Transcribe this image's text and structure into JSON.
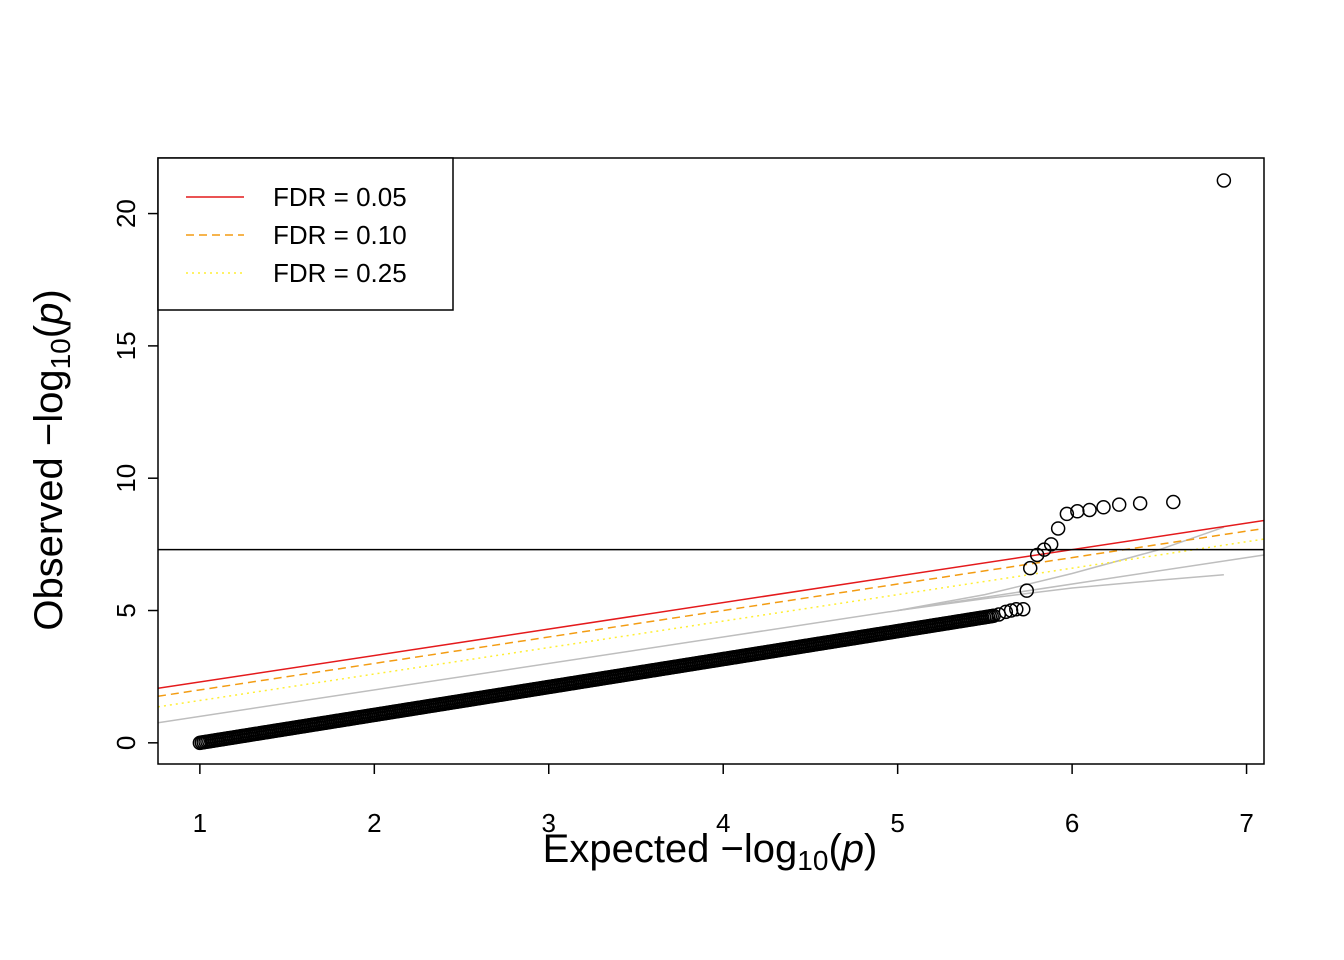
{
  "chart_data": {
    "type": "scatter",
    "title": "",
    "xlabel": {
      "prefix": "Expected ",
      "minus": "−",
      "log": "log",
      "sub": "10",
      "open": "(",
      "var": "p",
      "close": ")"
    },
    "ylabel": {
      "prefix": "Observed ",
      "minus": "−",
      "log": "log",
      "sub": "10",
      "open": "(",
      "var": "p",
      "close": ")"
    },
    "xlim": [
      0.76,
      7.1
    ],
    "ylim": [
      -0.8,
      22.1
    ],
    "x_ticks": [
      1,
      2,
      3,
      4,
      5,
      6,
      7
    ],
    "y_ticks": [
      0,
      5,
      10,
      15,
      20
    ],
    "grid": false,
    "legend": {
      "position": "top-left",
      "entries": [
        {
          "label": "FDR = 0.05",
          "color": "#e41a1c",
          "dash": "solid"
        },
        {
          "label": "FDR = 0.10",
          "color": "#f39c12",
          "dash": "dashed"
        },
        {
          "label": "FDR = 0.25",
          "color": "#ffee33",
          "dash": "dotted"
        }
      ]
    },
    "reference_lines": {
      "significance_threshold_y": 7.3,
      "fdr_lines": [
        {
          "name": "FDR = 0.05",
          "color": "#e41a1c",
          "dash": "solid",
          "intercept": 1.3,
          "slope": 1.0
        },
        {
          "name": "FDR = 0.10",
          "color": "#f39c12",
          "dash": "dashed",
          "intercept": 1.0,
          "slope": 1.0
        },
        {
          "name": "FDR = 0.25",
          "color": "#ffee33",
          "dash": "dotted",
          "intercept": 0.6,
          "slope": 1.0
        }
      ],
      "identity_line": {
        "color": "#bebebe",
        "intercept": 0,
        "slope": 1.0
      },
      "confidence_band": {
        "color": "#bebebe",
        "upper": [
          [
            5.0,
            5.0
          ],
          [
            5.5,
            5.6
          ],
          [
            6.0,
            6.4
          ],
          [
            6.5,
            7.3
          ],
          [
            6.87,
            8.15
          ]
        ],
        "lower": [
          [
            5.0,
            5.0
          ],
          [
            5.5,
            5.45
          ],
          [
            6.0,
            5.85
          ],
          [
            6.5,
            6.15
          ],
          [
            6.87,
            6.35
          ]
        ]
      }
    },
    "series": [
      {
        "marker": "open-circle",
        "color": "#000000",
        "dense_segment": {
          "x_start": 1.0,
          "x_end": 5.55,
          "y_start": 0.0,
          "y_end": 4.8
        },
        "x": [
          5.58,
          5.62,
          5.65,
          5.68,
          5.72,
          5.74,
          5.76,
          5.8,
          5.84,
          5.88,
          5.92,
          5.97,
          6.03,
          6.1,
          6.18,
          6.27,
          6.39,
          6.58,
          6.87
        ],
        "y": [
          4.85,
          4.95,
          5.0,
          5.05,
          5.05,
          5.75,
          6.6,
          7.1,
          7.3,
          7.5,
          8.1,
          8.65,
          8.75,
          8.8,
          8.9,
          9.0,
          9.05,
          9.1,
          21.25
        ]
      }
    ]
  }
}
